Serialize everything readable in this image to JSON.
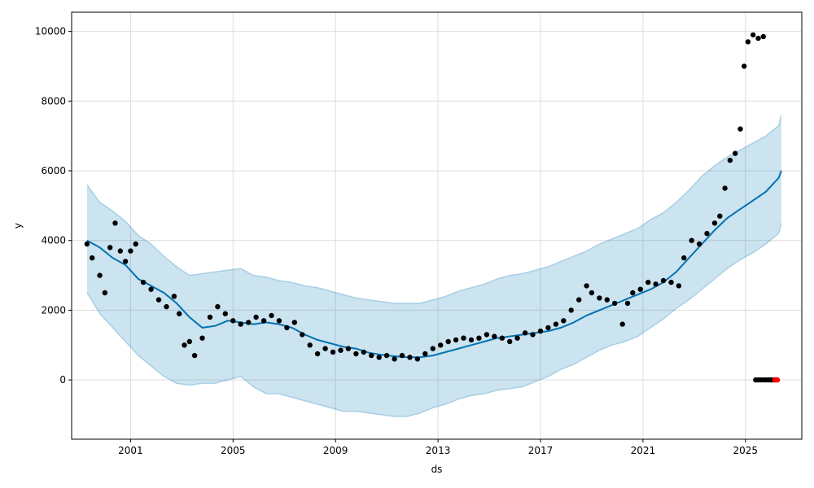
{
  "chart_data": {
    "type": "line",
    "title": "",
    "xlabel": "ds",
    "ylabel": "y",
    "xlim": [
      1998.7,
      2027.2
    ],
    "ylim": [
      -1700,
      10550
    ],
    "grid": true,
    "colors": {
      "forecast_line": "#0072B2",
      "uncertainty_band": "#0072B2",
      "observed_points": "#000000",
      "recent_points": "#ff0000",
      "grid": "#dddddd"
    },
    "x_ticks": [
      {
        "value": 2001,
        "label": "2001"
      },
      {
        "value": 2005,
        "label": "2005"
      },
      {
        "value": 2009,
        "label": "2009"
      },
      {
        "value": 2013,
        "label": "2013"
      },
      {
        "value": 2017,
        "label": "2017"
      },
      {
        "value": 2021,
        "label": "2021"
      },
      {
        "value": 2025,
        "label": "2025"
      }
    ],
    "y_ticks": [
      {
        "value": 0,
        "label": "0"
      },
      {
        "value": 2000,
        "label": "2000"
      },
      {
        "value": 4000,
        "label": "4000"
      },
      {
        "value": 6000,
        "label": "6000"
      },
      {
        "value": 8000,
        "label": "8000"
      },
      {
        "value": 10000,
        "label": "10000"
      }
    ],
    "forecast": {
      "x": [
        1999.3,
        1999.8,
        2000.3,
        2000.8,
        2001.3,
        2001.8,
        2002.3,
        2002.8,
        2003.3,
        2003.8,
        2004.3,
        2004.8,
        2005.3,
        2005.8,
        2006.3,
        2006.8,
        2007.3,
        2007.8,
        2008.3,
        2008.8,
        2009.3,
        2009.8,
        2010.3,
        2010.8,
        2011.3,
        2011.8,
        2012.3,
        2012.8,
        2013.3,
        2013.8,
        2014.3,
        2014.8,
        2015.3,
        2015.8,
        2016.3,
        2016.8,
        2017.3,
        2017.8,
        2018.3,
        2018.8,
        2019.3,
        2019.8,
        2020.3,
        2020.8,
        2021.3,
        2021.8,
        2022.3,
        2022.8,
        2023.3,
        2023.8,
        2024.3,
        2024.8,
        2025.3,
        2025.8,
        2026.3,
        2026.4
      ],
      "yhat": [
        4000,
        3800,
        3500,
        3300,
        2900,
        2700,
        2500,
        2200,
        1800,
        1500,
        1550,
        1700,
        1650,
        1600,
        1650,
        1600,
        1500,
        1300,
        1150,
        1050,
        950,
        900,
        780,
        720,
        680,
        650,
        650,
        700,
        800,
        900,
        1000,
        1100,
        1200,
        1250,
        1300,
        1350,
        1400,
        1500,
        1650,
        1850,
        2000,
        2150,
        2300,
        2450,
        2600,
        2800,
        3100,
        3500,
        3900,
        4300,
        4650,
        4900,
        5150,
        5400,
        5800,
        6000
      ],
      "yhat_lower": [
        2500,
        1900,
        1500,
        1100,
        700,
        400,
        100,
        -100,
        -150,
        -100,
        -100,
        0,
        100,
        -200,
        -400,
        -400,
        -500,
        -600,
        -700,
        -800,
        -900,
        -900,
        -950,
        -1000,
        -1050,
        -1050,
        -950,
        -800,
        -700,
        -550,
        -450,
        -400,
        -300,
        -250,
        -200,
        -50,
        100,
        300,
        450,
        650,
        850,
        1000,
        1100,
        1250,
        1500,
        1750,
        2050,
        2300,
        2600,
        2900,
        3200,
        3450,
        3650,
        3900,
        4200,
        4500
      ],
      "yhat_upper": [
        5600,
        5100,
        4850,
        4550,
        4150,
        3900,
        3550,
        3250,
        3000,
        3050,
        3100,
        3150,
        3200,
        3000,
        2950,
        2850,
        2800,
        2700,
        2650,
        2550,
        2450,
        2350,
        2300,
        2250,
        2200,
        2200,
        2200,
        2300,
        2400,
        2550,
        2650,
        2750,
        2900,
        3000,
        3050,
        3150,
        3250,
        3400,
        3550,
        3700,
        3900,
        4050,
        4200,
        4350,
        4600,
        4800,
        5100,
        5450,
        5850,
        6150,
        6400,
        6600,
        6800,
        7000,
        7300,
        7600
      ]
    },
    "observed": {
      "x": [
        1999.3,
        1999.5,
        1999.8,
        2000.0,
        2000.2,
        2000.4,
        2000.6,
        2000.8,
        2001.0,
        2001.2,
        2001.5,
        2001.8,
        2002.1,
        2002.4,
        2002.7,
        2002.9,
        2003.1,
        2003.3,
        2003.5,
        2003.8,
        2004.1,
        2004.4,
        2004.7,
        2005.0,
        2005.3,
        2005.6,
        2005.9,
        2006.2,
        2006.5,
        2006.8,
        2007.1,
        2007.4,
        2007.7,
        2008.0,
        2008.3,
        2008.6,
        2008.9,
        2009.2,
        2009.5,
        2009.8,
        2010.1,
        2010.4,
        2010.7,
        2011.0,
        2011.3,
        2011.6,
        2011.9,
        2012.2,
        2012.5,
        2012.8,
        2013.1,
        2013.4,
        2013.7,
        2014.0,
        2014.3,
        2014.6,
        2014.9,
        2015.2,
        2015.5,
        2015.8,
        2016.1,
        2016.4,
        2016.7,
        2017.0,
        2017.3,
        2017.6,
        2017.9,
        2018.2,
        2018.5,
        2018.8,
        2019.0,
        2019.3,
        2019.6,
        2019.9,
        2020.2,
        2020.4,
        2020.6,
        2020.9,
        2021.2,
        2021.5,
        2021.8,
        2022.1,
        2022.4,
        2022.6,
        2022.9,
        2023.2,
        2023.5,
        2023.8,
        2024.0,
        2024.2,
        2024.4,
        2024.6,
        2024.8,
        2024.95,
        2025.1,
        2025.3,
        2025.5,
        2025.7
      ],
      "y": [
        3900,
        3500,
        3000,
        2500,
        3800,
        4500,
        3700,
        3400,
        3700,
        3900,
        2800,
        2600,
        2300,
        2100,
        2400,
        1900,
        1000,
        1100,
        700,
        1200,
        1800,
        2100,
        1900,
        1700,
        1600,
        1650,
        1800,
        1700,
        1850,
        1700,
        1500,
        1650,
        1300,
        1000,
        750,
        900,
        800,
        850,
        900,
        750,
        800,
        700,
        650,
        700,
        600,
        700,
        650,
        600,
        750,
        900,
        1000,
        1100,
        1150,
        1200,
        1150,
        1200,
        1300,
        1250,
        1200,
        1100,
        1200,
        1350,
        1300,
        1400,
        1500,
        1600,
        1700,
        2000,
        2300,
        2700,
        2500,
        2350,
        2300,
        2200,
        1600,
        2200,
        2500,
        2600,
        2800,
        2750,
        2850,
        2800,
        2700,
        3500,
        4000,
        3900,
        4200,
        4500,
        4700,
        5500,
        6300,
        6500,
        7200,
        9000,
        9700,
        9900,
        9800,
        9850
      ]
    },
    "recent": {
      "x": [
        2025.4,
        2025.5,
        2025.6,
        2025.7,
        2025.8,
        2025.9,
        2026.0,
        2026.1
      ],
      "y": [
        0,
        0,
        0,
        0,
        0,
        0,
        0,
        0
      ],
      "red_x": [
        2026.15,
        2026.2,
        2026.25
      ]
    }
  }
}
